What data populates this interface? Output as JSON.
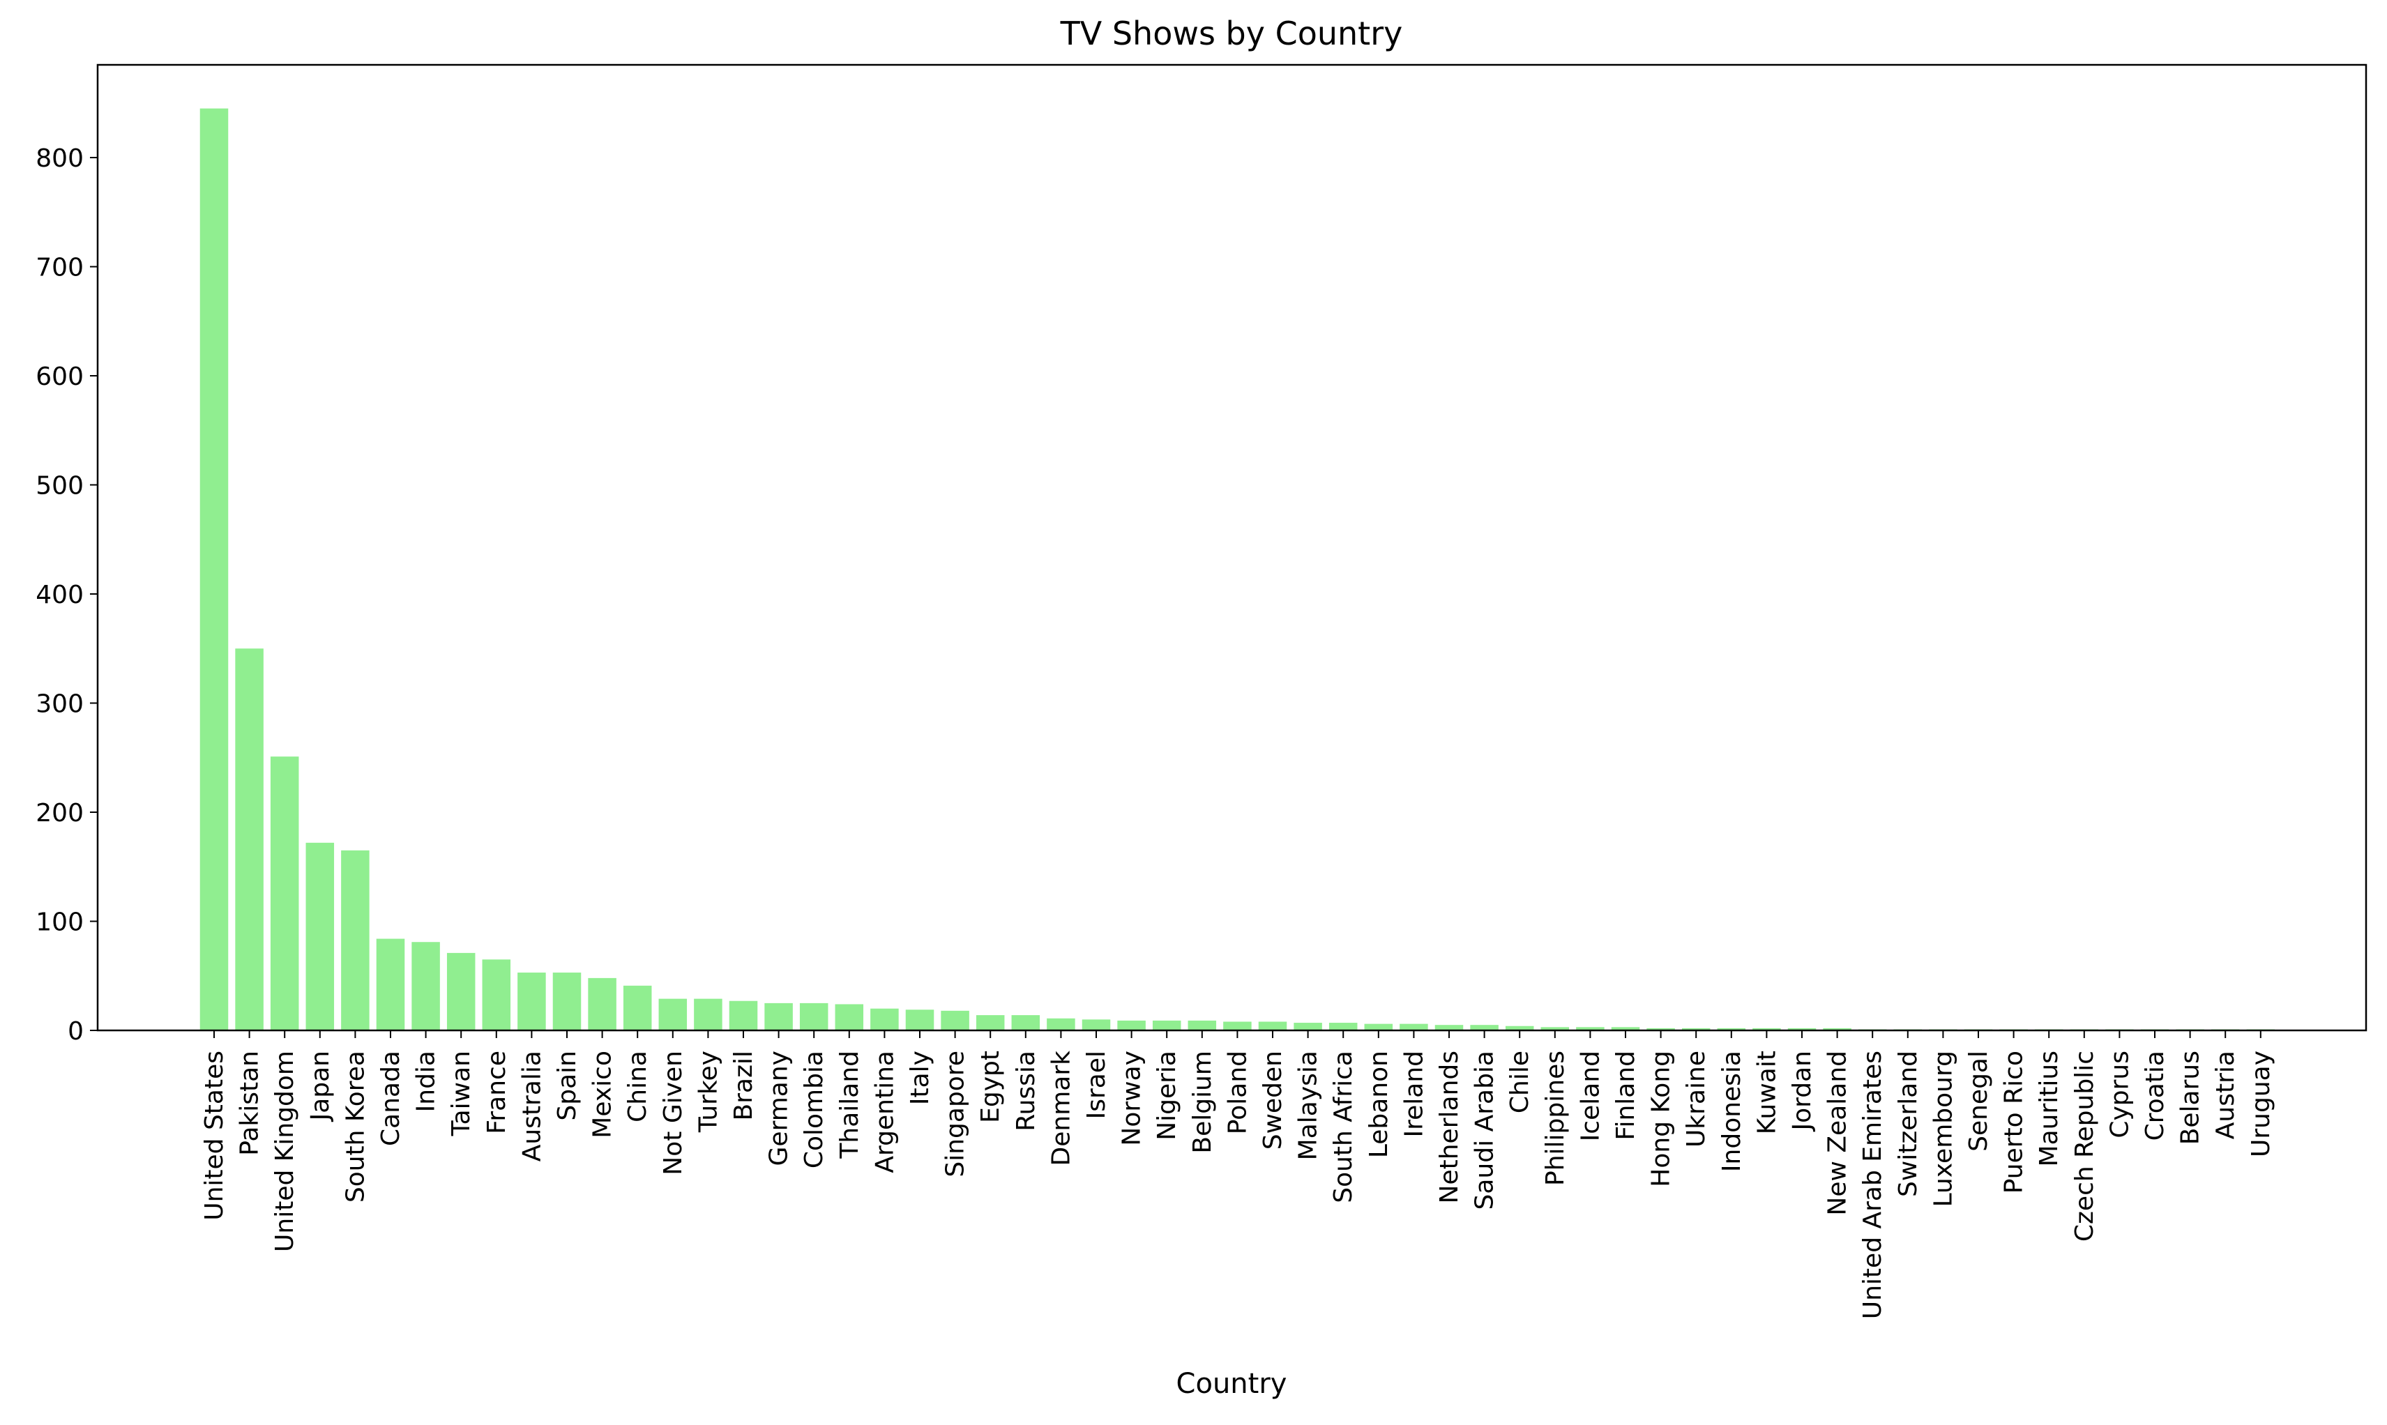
{
  "chart_data": {
    "type": "bar",
    "title": "TV Shows by Country",
    "xlabel": "Country",
    "ylabel": "",
    "ylim": [
      0,
      885
    ],
    "yticks": [
      0,
      100,
      200,
      300,
      400,
      500,
      600,
      700,
      800
    ],
    "grid": false,
    "bar_color": "#90ee90",
    "categories": [
      "United States",
      "Pakistan",
      "United Kingdom",
      "Japan",
      "South Korea",
      "Canada",
      "India",
      "Taiwan",
      "France",
      "Australia",
      "Spain",
      "Mexico",
      "China",
      "Not Given",
      "Turkey",
      "Brazil",
      "Germany",
      "Colombia",
      "Thailand",
      "Argentina",
      "Italy",
      "Singapore",
      "Egypt",
      "Russia",
      "Denmark",
      "Israel",
      "Norway",
      "Nigeria",
      "Belgium",
      "Poland",
      "Sweden",
      "Malaysia",
      "South Africa",
      "Lebanon",
      "Ireland",
      "Netherlands",
      "Saudi Arabia",
      "Chile",
      "Philippines",
      "Iceland",
      "Finland",
      "Hong Kong",
      "Ukraine",
      "Indonesia",
      "Kuwait",
      "Jordan",
      "New Zealand",
      "United Arab Emirates",
      "Switzerland",
      "Luxembourg",
      "Senegal",
      "Puerto Rico",
      "Mauritius",
      "Czech Republic",
      "Cyprus",
      "Croatia",
      "Belarus",
      "Austria",
      "Uruguay"
    ],
    "values": [
      845,
      350,
      251,
      172,
      165,
      84,
      81,
      71,
      65,
      53,
      53,
      48,
      41,
      29,
      29,
      27,
      25,
      25,
      24,
      20,
      19,
      18,
      14,
      14,
      11,
      10,
      9,
      9,
      9,
      8,
      8,
      7,
      7,
      6,
      6,
      5,
      5,
      4,
      3,
      3,
      3,
      2,
      2,
      2,
      2,
      2,
      2,
      1,
      1,
      1,
      1,
      1,
      1,
      1,
      1,
      1,
      1,
      1,
      1
    ]
  }
}
